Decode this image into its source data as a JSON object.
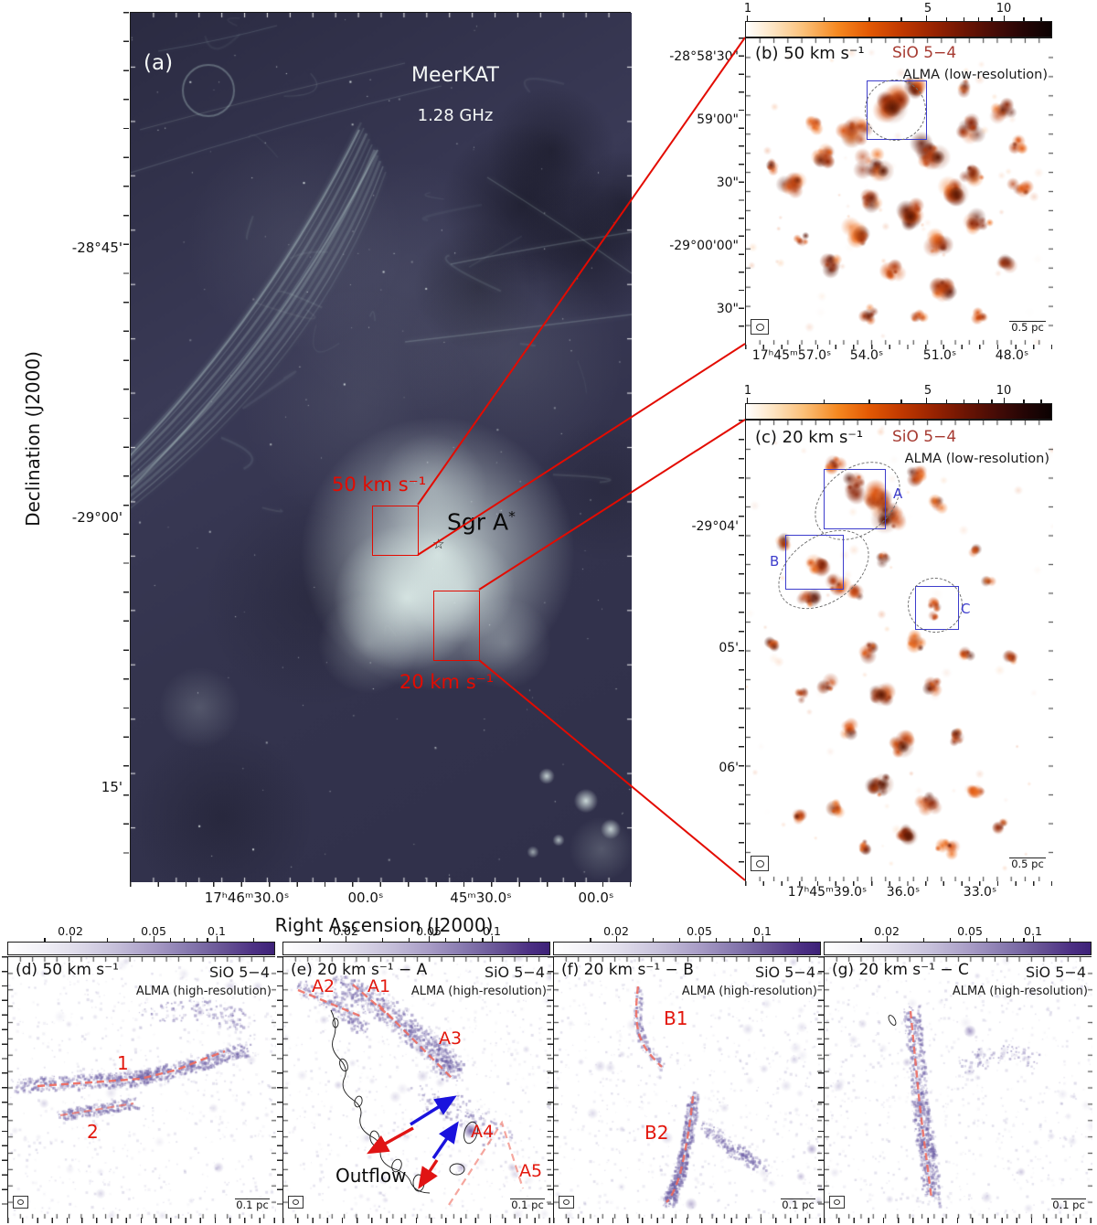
{
  "colors": {
    "annotation_red": "#e30b00",
    "filament_dash_red": "#ef6a5e",
    "box_blue": "#3d3dcc",
    "sio_red": "#a63a31",
    "sio_purple": "#9729ae",
    "arrow_blue": "#1a12dd",
    "arrow_red": "#e01414"
  },
  "panel_a": {
    "label": "(a)",
    "instrument": "MeerKAT",
    "frequency": "1.28 GHz",
    "source": "Sgr A",
    "source_sup": "*",
    "star_marker": "☆",
    "region_50": "50 km s⁻¹",
    "region_20": "20 km s⁻¹",
    "xlabel": "Right Ascension (J2000)",
    "ylabel": "Declination (J2000)",
    "xticks": [
      "17ʰ46ᵐ30.0ˢ",
      "00.0ˢ",
      "45ᵐ30.0ˢ",
      "00.0ˢ"
    ],
    "yticks": [
      "-28°45'",
      "-29°00'",
      "15'"
    ]
  },
  "panel_b": {
    "label": "(b) 50 km s⁻¹",
    "line": "SiO 5−4",
    "survey": "ALMA (low-resolution)",
    "cbar_ticks": [
      "1",
      "5",
      "10"
    ],
    "xticks": [
      "17ʰ45ᵐ57.0ˢ",
      "54.0ˢ",
      "51.0ˢ",
      "48.0ˢ"
    ],
    "yticks": [
      "-28°58'30\"",
      "59'00\"",
      "30\"",
      "-29°00'00\"",
      "30\""
    ],
    "scalebar": "0.5 pc"
  },
  "panel_c": {
    "label": "(c) 20 km s⁻¹",
    "line": "SiO 5−4",
    "survey": "ALMA (low-resolution)",
    "cbar_ticks": [
      "1",
      "5",
      "10"
    ],
    "xticks": [
      "17ʰ45ᵐ39.0ˢ",
      "36.0ˢ",
      "33.0ˢ"
    ],
    "yticks": [
      "-29°04'",
      "05'",
      "06'"
    ],
    "regions": [
      "A",
      "B",
      "C"
    ],
    "scalebar": "0.5 pc"
  },
  "panel_d": {
    "label": "(d) 50 km s⁻¹",
    "line": "SiO 5−4",
    "survey": "ALMA (high-resolution)",
    "cbar_ticks": [
      "0.02",
      "0.05",
      "0.1"
    ],
    "filaments": [
      "1",
      "2"
    ],
    "scalebar": "0.1 pc"
  },
  "panel_e": {
    "label": "(e) 20 km s⁻¹ − A",
    "line": "SiO 5−4",
    "survey": "ALMA (high-resolution)",
    "cbar_ticks": [
      "0.02",
      "0.05",
      "0.1"
    ],
    "filaments": [
      "A1",
      "A2",
      "A3",
      "A4",
      "A5"
    ],
    "outflow_label": "Outflow",
    "scalebar": "0.1 pc"
  },
  "panel_f": {
    "label": "(f) 20 km s⁻¹ − B",
    "line": "SiO 5−4",
    "survey": "ALMA (high-resolution)",
    "cbar_ticks": [
      "0.02",
      "0.05",
      "0.1"
    ],
    "filaments": [
      "B1",
      "B2"
    ],
    "scalebar": "0.1 pc"
  },
  "panel_g": {
    "label": "(g) 20 km s⁻¹ − C",
    "line": "SiO 5−4",
    "survey": "ALMA (high-resolution)",
    "cbar_ticks": [
      "0.02",
      "0.05",
      "0.1"
    ],
    "scalebar": "0.1 pc"
  }
}
